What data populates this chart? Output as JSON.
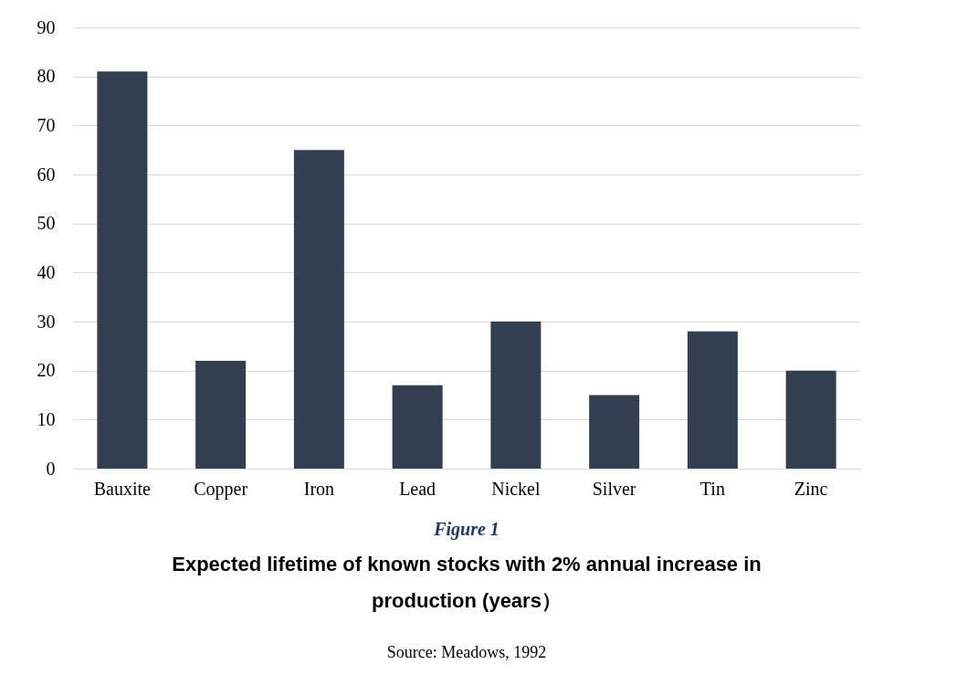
{
  "chart_data": {
    "type": "bar",
    "title": "Expected lifetime of known stocks with 2% annual increase in production (years）",
    "categories": [
      "Bauxite",
      "Copper",
      "Iron",
      "Lead",
      "Nickel",
      "Silver",
      "Tin",
      "Zinc"
    ],
    "values": [
      81,
      22,
      65,
      17,
      30,
      15,
      28,
      20
    ],
    "color": "#333f50",
    "ylim": [
      0,
      90
    ],
    "yticks": [
      0,
      10,
      20,
      30,
      40,
      50,
      60,
      70,
      80,
      90
    ],
    "grid": "y",
    "annotations": [
      "Figure 1",
      "Source: Meadows, 1992"
    ]
  }
}
